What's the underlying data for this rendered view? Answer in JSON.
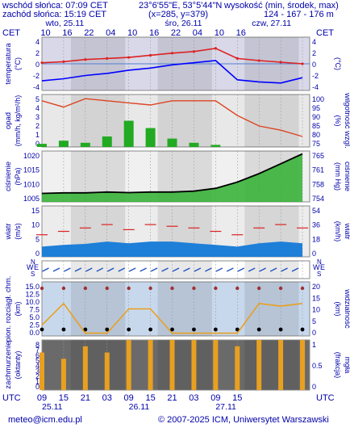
{
  "header": {
    "sunrise": "wschód słońca: 07:09 CET",
    "sunset": "zachód słońca: 15:19 CET",
    "coords": "23°6'55\"E, 53°5'44\"N",
    "grid": "(x=285, y=379)",
    "elev_label": "wysokość (min, środek, max)",
    "elev_values": "124 - 167 - 176 m"
  },
  "top_axis": {
    "tz": "CET",
    "days": [
      "wto, 25.11",
      "śro, 26.11",
      "czw, 27.11"
    ],
    "hours": [
      "10",
      "16",
      "22",
      "04",
      "10",
      "16",
      "22",
      "04",
      "10",
      "16"
    ]
  },
  "bottom_axis": {
    "tz": "UTC",
    "hours": [
      "09",
      "15",
      "21",
      "03",
      "09",
      "15",
      "21",
      "03",
      "09",
      "15"
    ],
    "days": [
      "25.11",
      "26.11",
      "27.11"
    ]
  },
  "panels": {
    "temperature": {
      "left": "temperatura",
      "left_unit": "(°C)",
      "right_unit": "(°C)",
      "ticks": [
        "4",
        "2",
        "0",
        "-2",
        "-4"
      ]
    },
    "precip": {
      "left": "opad",
      "left_unit": "(mm/h, kg/m²/h)",
      "right": "wilgotność wzgl.",
      "right_unit": "(%)",
      "ticks_left": [
        "5",
        "4",
        "3",
        "2",
        "1",
        "0"
      ],
      "ticks_right": [
        "100",
        "95",
        "90",
        "85",
        "80",
        "75"
      ]
    },
    "pressure": {
      "left": "ciśnienie",
      "left_unit": "(hPa)",
      "right": "ciśnienie",
      "right_unit": "(mm Hg)",
      "ticks_left": [
        "1020",
        "1015",
        "1010",
        "1005"
      ],
      "ticks_right": [
        "765",
        "761",
        "758",
        "754"
      ]
    },
    "wind": {
      "left": "wiatr",
      "left_unit": "(m/s)",
      "right": "wiatr",
      "right_unit": "(km/h)",
      "ticks_left": [
        "15",
        "10",
        "5",
        "0"
      ],
      "ticks_right": [
        "54",
        "36",
        "18",
        "0"
      ]
    },
    "vis": {
      "left": "pion. rozciągł. chm.",
      "left_unit": "(km)",
      "right": "widzialność",
      "right_unit": "(km)",
      "ticks_left": [
        "15.0",
        "12.5",
        "10.0",
        "7.5",
        "5.0",
        "2.5",
        "0.0"
      ],
      "ticks_right": [
        "20",
        "15",
        "10",
        "5",
        "0"
      ]
    },
    "cloud": {
      "left": "zachmurzenie",
      "left_unit": "(oktanty)",
      "right": "mgła",
      "right_unit": "(frakcja)",
      "ticks_left": [
        "8",
        "7",
        "6",
        "5",
        "4",
        "3",
        "2",
        "1",
        "0"
      ],
      "ticks_right": [
        "1",
        "0.5",
        "0"
      ]
    }
  },
  "compass": {
    "w": "W",
    "e": "E",
    "s": "S",
    "n": "N"
  },
  "footer": {
    "email": "meteo@icm.edu.pl",
    "copyright": "© 2007-2025 ICM, Uniwersytet Warszawski"
  },
  "colors": {
    "blue_text": "#0000aa",
    "temp_line": "#dd2222",
    "dew_line": "#0000ff",
    "precip": "#22aa22",
    "humidity": "#dd4422",
    "pressure_line": "#000000",
    "gust": "#dd2222",
    "wind_fill": "#1e7fd8",
    "vis_line": "#e8a020",
    "cloud_bar": "#e8a020"
  },
  "chart_data": [
    {
      "type": "line",
      "title": "temperatura",
      "x_unit": "hours from 25.11 09 UTC",
      "ylim": [
        -5,
        5
      ],
      "series": [
        {
          "name": "temperatura",
          "x": [
            0,
            6,
            12,
            18,
            24,
            30,
            36,
            42,
            48,
            54,
            60,
            66,
            72
          ],
          "values": [
            0.2,
            0.4,
            0.8,
            1.0,
            1.2,
            1.6,
            2.0,
            2.3,
            2.9,
            1.0,
            0.6,
            0.3,
            0.0
          ]
        },
        {
          "name": "punkt rosy",
          "x": [
            0,
            6,
            12,
            18,
            24,
            30,
            36,
            42,
            48,
            54,
            60,
            66,
            72
          ],
          "values": [
            -3.2,
            -2.8,
            -2.2,
            -1.8,
            -1.2,
            -0.8,
            -0.2,
            0.2,
            0.6,
            -3.0,
            -3.4,
            -3.6,
            -2.6
          ]
        }
      ]
    },
    {
      "type": "bar",
      "title": "opad",
      "x_unit": "hours from 25.11 09 UTC",
      "ylim": [
        0,
        5
      ],
      "series": [
        {
          "name": "opad",
          "x": [
            0,
            6,
            12,
            18,
            24,
            30,
            36,
            42,
            48,
            54,
            60,
            66,
            72
          ],
          "values": [
            0.3,
            0.6,
            0.4,
            1.0,
            2.5,
            1.8,
            0.8,
            0.4,
            0.2,
            0.0,
            0.0,
            0.0,
            0.0
          ]
        },
        {
          "name": "wilgotność wzgl.",
          "x": [
            0,
            6,
            12,
            18,
            24,
            30,
            36,
            42,
            48,
            54,
            60,
            66,
            72
          ],
          "values": [
            97,
            94,
            98,
            97,
            96,
            95,
            97,
            97,
            97,
            90,
            85,
            83,
            80
          ]
        }
      ]
    },
    {
      "type": "line",
      "title": "ciśnienie",
      "x_unit": "hours from 25.11 09 UTC",
      "ylim": [
        1003,
        1021
      ],
      "series": [
        {
          "name": "ciśnienie",
          "x": [
            0,
            6,
            12,
            18,
            24,
            30,
            36,
            42,
            48,
            54,
            60,
            66,
            72
          ],
          "values": [
            1006.0,
            1006.2,
            1006.2,
            1006.5,
            1006.3,
            1006.5,
            1006.5,
            1006.8,
            1007.8,
            1010.0,
            1013.0,
            1016.5,
            1020.0
          ]
        }
      ]
    },
    {
      "type": "area",
      "title": "wiatr",
      "x_unit": "hours from 25.11 09 UTC",
      "ylim": [
        0,
        15
      ],
      "series": [
        {
          "name": "wiatr",
          "x": [
            0,
            6,
            12,
            18,
            24,
            30,
            36,
            42,
            48,
            54,
            60,
            66,
            72
          ],
          "values": [
            3.0,
            3.5,
            3.8,
            4.5,
            4.0,
            4.5,
            4.5,
            4.0,
            3.5,
            3.0,
            4.0,
            4.5,
            4.0
          ]
        },
        {
          "name": "porywy",
          "x": [
            0,
            6,
            12,
            18,
            24,
            30,
            36,
            42,
            48,
            54,
            60,
            66,
            72
          ],
          "values": [
            6.5,
            7.5,
            8.5,
            9.5,
            8.0,
            9.5,
            9.0,
            8.5,
            7.5,
            6.5,
            8.5,
            9.5,
            8.5
          ]
        }
      ]
    },
    {
      "type": "line",
      "title": "widzialność",
      "x_unit": "hours from 25.11 09 UTC",
      "ylim": [
        0,
        20
      ],
      "series": [
        {
          "name": "widzialność",
          "x": [
            0,
            6,
            12,
            18,
            24,
            30,
            36,
            42,
            48,
            54,
            60,
            66,
            72
          ],
          "values": [
            4,
            12,
            1,
            1,
            10,
            10,
            1,
            1,
            1,
            1,
            12,
            11,
            12
          ]
        }
      ]
    },
    {
      "type": "bar",
      "title": "zachmurzenie",
      "x_unit": "hours from 25.11 09 UTC",
      "ylim": [
        0,
        8
      ],
      "series": [
        {
          "name": "zachmurzenie",
          "x": [
            0,
            6,
            12,
            18,
            24,
            30,
            36,
            42,
            48,
            54,
            60,
            66,
            72
          ],
          "values": [
            6,
            5,
            7,
            6,
            8,
            8,
            8,
            8,
            8,
            7,
            8,
            8,
            8
          ]
        }
      ]
    }
  ]
}
